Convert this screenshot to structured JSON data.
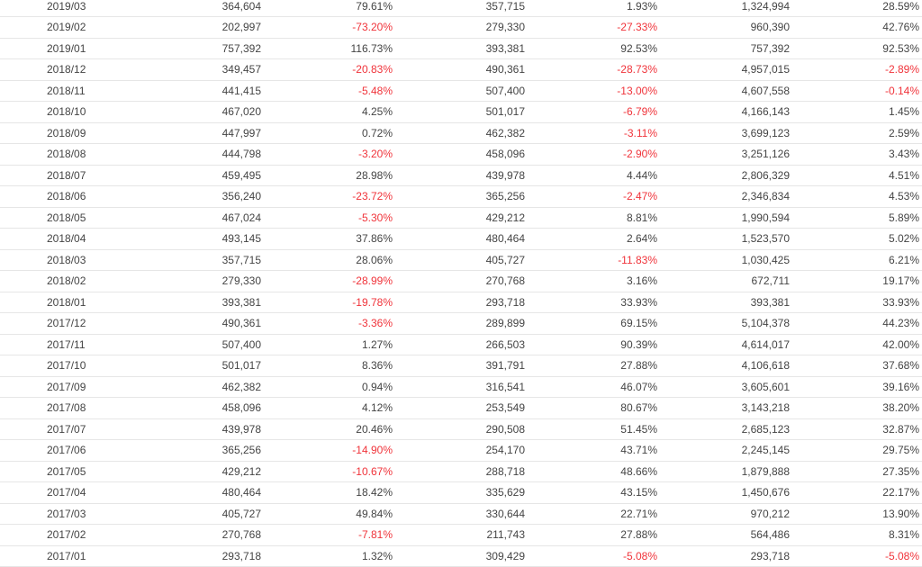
{
  "colors": {
    "text": "#444444",
    "negative": "#f0333a",
    "row_divider": "#e6e6e6"
  },
  "rows": [
    {
      "month": "2019/03",
      "v1": "364,604",
      "v2": "79.61%",
      "v3": "357,715",
      "v4": "1.93%",
      "v5": "1,324,994",
      "v6": "28.59%"
    },
    {
      "month": "2019/02",
      "v1": "202,997",
      "v2": "-73.20%",
      "v3": "279,330",
      "v4": "-27.33%",
      "v5": "960,390",
      "v6": "42.76%"
    },
    {
      "month": "2019/01",
      "v1": "757,392",
      "v2": "116.73%",
      "v3": "393,381",
      "v4": "92.53%",
      "v5": "757,392",
      "v6": "92.53%"
    },
    {
      "month": "2018/12",
      "v1": "349,457",
      "v2": "-20.83%",
      "v3": "490,361",
      "v4": "-28.73%",
      "v5": "4,957,015",
      "v6": "-2.89%"
    },
    {
      "month": "2018/11",
      "v1": "441,415",
      "v2": "-5.48%",
      "v3": "507,400",
      "v4": "-13.00%",
      "v5": "4,607,558",
      "v6": "-0.14%"
    },
    {
      "month": "2018/10",
      "v1": "467,020",
      "v2": "4.25%",
      "v3": "501,017",
      "v4": "-6.79%",
      "v5": "4,166,143",
      "v6": "1.45%"
    },
    {
      "month": "2018/09",
      "v1": "447,997",
      "v2": "0.72%",
      "v3": "462,382",
      "v4": "-3.11%",
      "v5": "3,699,123",
      "v6": "2.59%"
    },
    {
      "month": "2018/08",
      "v1": "444,798",
      "v2": "-3.20%",
      "v3": "458,096",
      "v4": "-2.90%",
      "v5": "3,251,126",
      "v6": "3.43%"
    },
    {
      "month": "2018/07",
      "v1": "459,495",
      "v2": "28.98%",
      "v3": "439,978",
      "v4": "4.44%",
      "v5": "2,806,329",
      "v6": "4.51%"
    },
    {
      "month": "2018/06",
      "v1": "356,240",
      "v2": "-23.72%",
      "v3": "365,256",
      "v4": "-2.47%",
      "v5": "2,346,834",
      "v6": "4.53%"
    },
    {
      "month": "2018/05",
      "v1": "467,024",
      "v2": "-5.30%",
      "v3": "429,212",
      "v4": "8.81%",
      "v5": "1,990,594",
      "v6": "5.89%"
    },
    {
      "month": "2018/04",
      "v1": "493,145",
      "v2": "37.86%",
      "v3": "480,464",
      "v4": "2.64%",
      "v5": "1,523,570",
      "v6": "5.02%"
    },
    {
      "month": "2018/03",
      "v1": "357,715",
      "v2": "28.06%",
      "v3": "405,727",
      "v4": "-11.83%",
      "v5": "1,030,425",
      "v6": "6.21%"
    },
    {
      "month": "2018/02",
      "v1": "279,330",
      "v2": "-28.99%",
      "v3": "270,768",
      "v4": "3.16%",
      "v5": "672,711",
      "v6": "19.17%"
    },
    {
      "month": "2018/01",
      "v1": "393,381",
      "v2": "-19.78%",
      "v3": "293,718",
      "v4": "33.93%",
      "v5": "393,381",
      "v6": "33.93%"
    },
    {
      "month": "2017/12",
      "v1": "490,361",
      "v2": "-3.36%",
      "v3": "289,899",
      "v4": "69.15%",
      "v5": "5,104,378",
      "v6": "44.23%"
    },
    {
      "month": "2017/11",
      "v1": "507,400",
      "v2": "1.27%",
      "v3": "266,503",
      "v4": "90.39%",
      "v5": "4,614,017",
      "v6": "42.00%"
    },
    {
      "month": "2017/10",
      "v1": "501,017",
      "v2": "8.36%",
      "v3": "391,791",
      "v4": "27.88%",
      "v5": "4,106,618",
      "v6": "37.68%"
    },
    {
      "month": "2017/09",
      "v1": "462,382",
      "v2": "0.94%",
      "v3": "316,541",
      "v4": "46.07%",
      "v5": "3,605,601",
      "v6": "39.16%"
    },
    {
      "month": "2017/08",
      "v1": "458,096",
      "v2": "4.12%",
      "v3": "253,549",
      "v4": "80.67%",
      "v5": "3,143,218",
      "v6": "38.20%"
    },
    {
      "month": "2017/07",
      "v1": "439,978",
      "v2": "20.46%",
      "v3": "290,508",
      "v4": "51.45%",
      "v5": "2,685,123",
      "v6": "32.87%"
    },
    {
      "month": "2017/06",
      "v1": "365,256",
      "v2": "-14.90%",
      "v3": "254,170",
      "v4": "43.71%",
      "v5": "2,245,145",
      "v6": "29.75%"
    },
    {
      "month": "2017/05",
      "v1": "429,212",
      "v2": "-10.67%",
      "v3": "288,718",
      "v4": "48.66%",
      "v5": "1,879,888",
      "v6": "27.35%"
    },
    {
      "month": "2017/04",
      "v1": "480,464",
      "v2": "18.42%",
      "v3": "335,629",
      "v4": "43.15%",
      "v5": "1,450,676",
      "v6": "22.17%"
    },
    {
      "month": "2017/03",
      "v1": "405,727",
      "v2": "49.84%",
      "v3": "330,644",
      "v4": "22.71%",
      "v5": "970,212",
      "v6": "13.90%"
    },
    {
      "month": "2017/02",
      "v1": "270,768",
      "v2": "-7.81%",
      "v3": "211,743",
      "v4": "27.88%",
      "v5": "564,486",
      "v6": "8.31%"
    },
    {
      "month": "2017/01",
      "v1": "293,718",
      "v2": "1.32%",
      "v3": "309,429",
      "v4": "-5.08%",
      "v5": "293,718",
      "v6": "-5.08%"
    }
  ]
}
